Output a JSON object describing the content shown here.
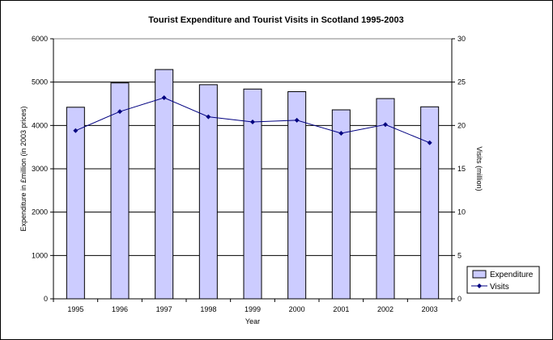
{
  "chart_data": {
    "type": "bar",
    "title": "Tourist Expenditure and Tourist Visits in Scotland 1995-2003",
    "xlabel": "Year",
    "ylabel": "Expenditure in £million (in 2003 prices)",
    "y2label": "Visits (million)",
    "categories": [
      "1995",
      "1996",
      "1997",
      "1998",
      "1999",
      "2000",
      "2001",
      "2002",
      "2003"
    ],
    "ylim": [
      0,
      6000
    ],
    "y2lim": [
      0,
      30
    ],
    "yticks": [
      "0",
      "1000",
      "2000",
      "3000",
      "4000",
      "5000",
      "6000"
    ],
    "y2ticks": [
      "0",
      "5",
      "10",
      "15",
      "20",
      "25",
      "30"
    ],
    "grid": true,
    "legend_position": "bottom-right",
    "series": [
      {
        "name": "Expenditure",
        "type": "bar",
        "axis": "left",
        "color": "#ccccff",
        "values": [
          4420,
          4980,
          5290,
          4940,
          4840,
          4780,
          4360,
          4620,
          4430
        ]
      },
      {
        "name": "Visits",
        "type": "line",
        "axis": "right",
        "color": "#000080",
        "values": [
          19.4,
          21.6,
          23.2,
          21.0,
          20.4,
          20.6,
          19.1,
          20.1,
          18.0
        ]
      }
    ]
  }
}
